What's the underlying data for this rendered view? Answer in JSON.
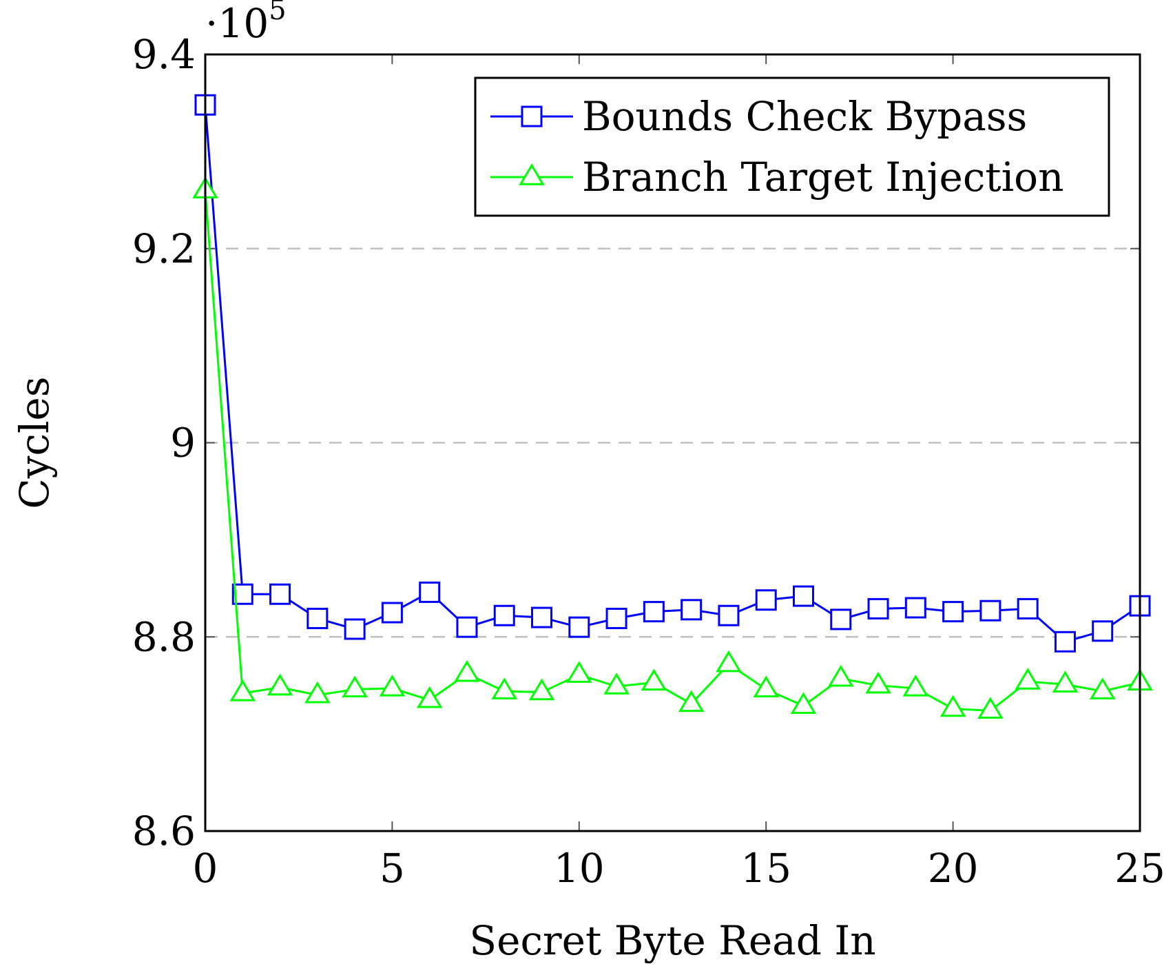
{
  "chart_data": {
    "type": "line",
    "xlabel": "Secret Byte Read In",
    "ylabel": "Cycles",
    "y_multiplier": {
      "base": "·10",
      "exponent": "5"
    },
    "xlim": [
      0,
      25
    ],
    "ylim": [
      8.6,
      9.4
    ],
    "xticks": [
      0,
      5,
      10,
      15,
      20,
      25
    ],
    "xtick_labels": [
      "0",
      "5",
      "10",
      "15",
      "20",
      "25"
    ],
    "yticks": [
      8.6,
      8.8,
      9.0,
      9.2,
      9.4
    ],
    "ytick_labels": [
      "8.6",
      "8.8",
      "9",
      "9.2",
      "9.4"
    ],
    "grid": "horizontal-dashed",
    "legend_position": "top-right",
    "x": [
      0,
      1,
      2,
      3,
      4,
      5,
      6,
      7,
      8,
      9,
      10,
      11,
      12,
      13,
      14,
      15,
      16,
      17,
      18,
      19,
      20,
      21,
      22,
      23,
      24,
      25
    ],
    "series": [
      {
        "name": "Bounds Check Bypass",
        "color": "#0000ff",
        "marker": "square",
        "values": [
          9.348,
          8.844,
          8.844,
          8.819,
          8.808,
          8.825,
          8.846,
          8.81,
          8.822,
          8.82,
          8.81,
          8.819,
          8.826,
          8.828,
          8.822,
          8.838,
          8.842,
          8.818,
          8.829,
          8.83,
          8.826,
          8.827,
          8.829,
          8.795,
          8.806,
          8.832
        ]
      },
      {
        "name": "Branch Target Injection",
        "color": "#00ff00",
        "marker": "triangle",
        "values": [
          9.26,
          8.742,
          8.748,
          8.74,
          8.746,
          8.747,
          8.735,
          8.762,
          8.744,
          8.743,
          8.761,
          8.749,
          8.753,
          8.731,
          8.772,
          8.746,
          8.729,
          8.757,
          8.75,
          8.747,
          8.726,
          8.724,
          8.754,
          8.751,
          8.744,
          8.753
        ]
      }
    ]
  }
}
